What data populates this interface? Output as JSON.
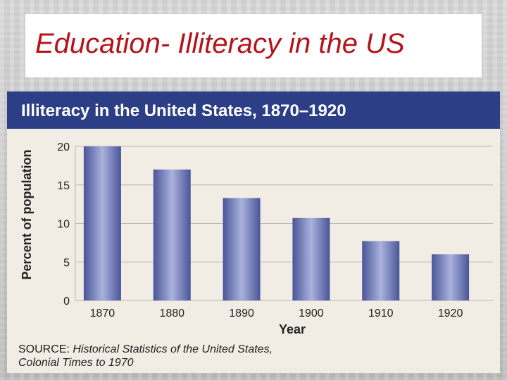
{
  "slide": {
    "title": "Education- Illiteracy in the US"
  },
  "chart_data": {
    "type": "bar",
    "title": "Illiteracy in the United States, 1870–1920",
    "categories": [
      "1870",
      "1880",
      "1890",
      "1900",
      "1910",
      "1920"
    ],
    "values": [
      20,
      17,
      13.3,
      10.7,
      7.7,
      6
    ],
    "xlabel": "Year",
    "ylabel": "Percent of population",
    "ylim": [
      0,
      20
    ],
    "yticks": [
      "0",
      "5",
      "10",
      "15",
      "20"
    ],
    "grid": true,
    "bar_color": "#5b66a8"
  },
  "source": {
    "prefix": "SOURCE: ",
    "title_line1": "Historical Statistics of the United States,",
    "title_line2": "Colonial Times to 1970"
  }
}
